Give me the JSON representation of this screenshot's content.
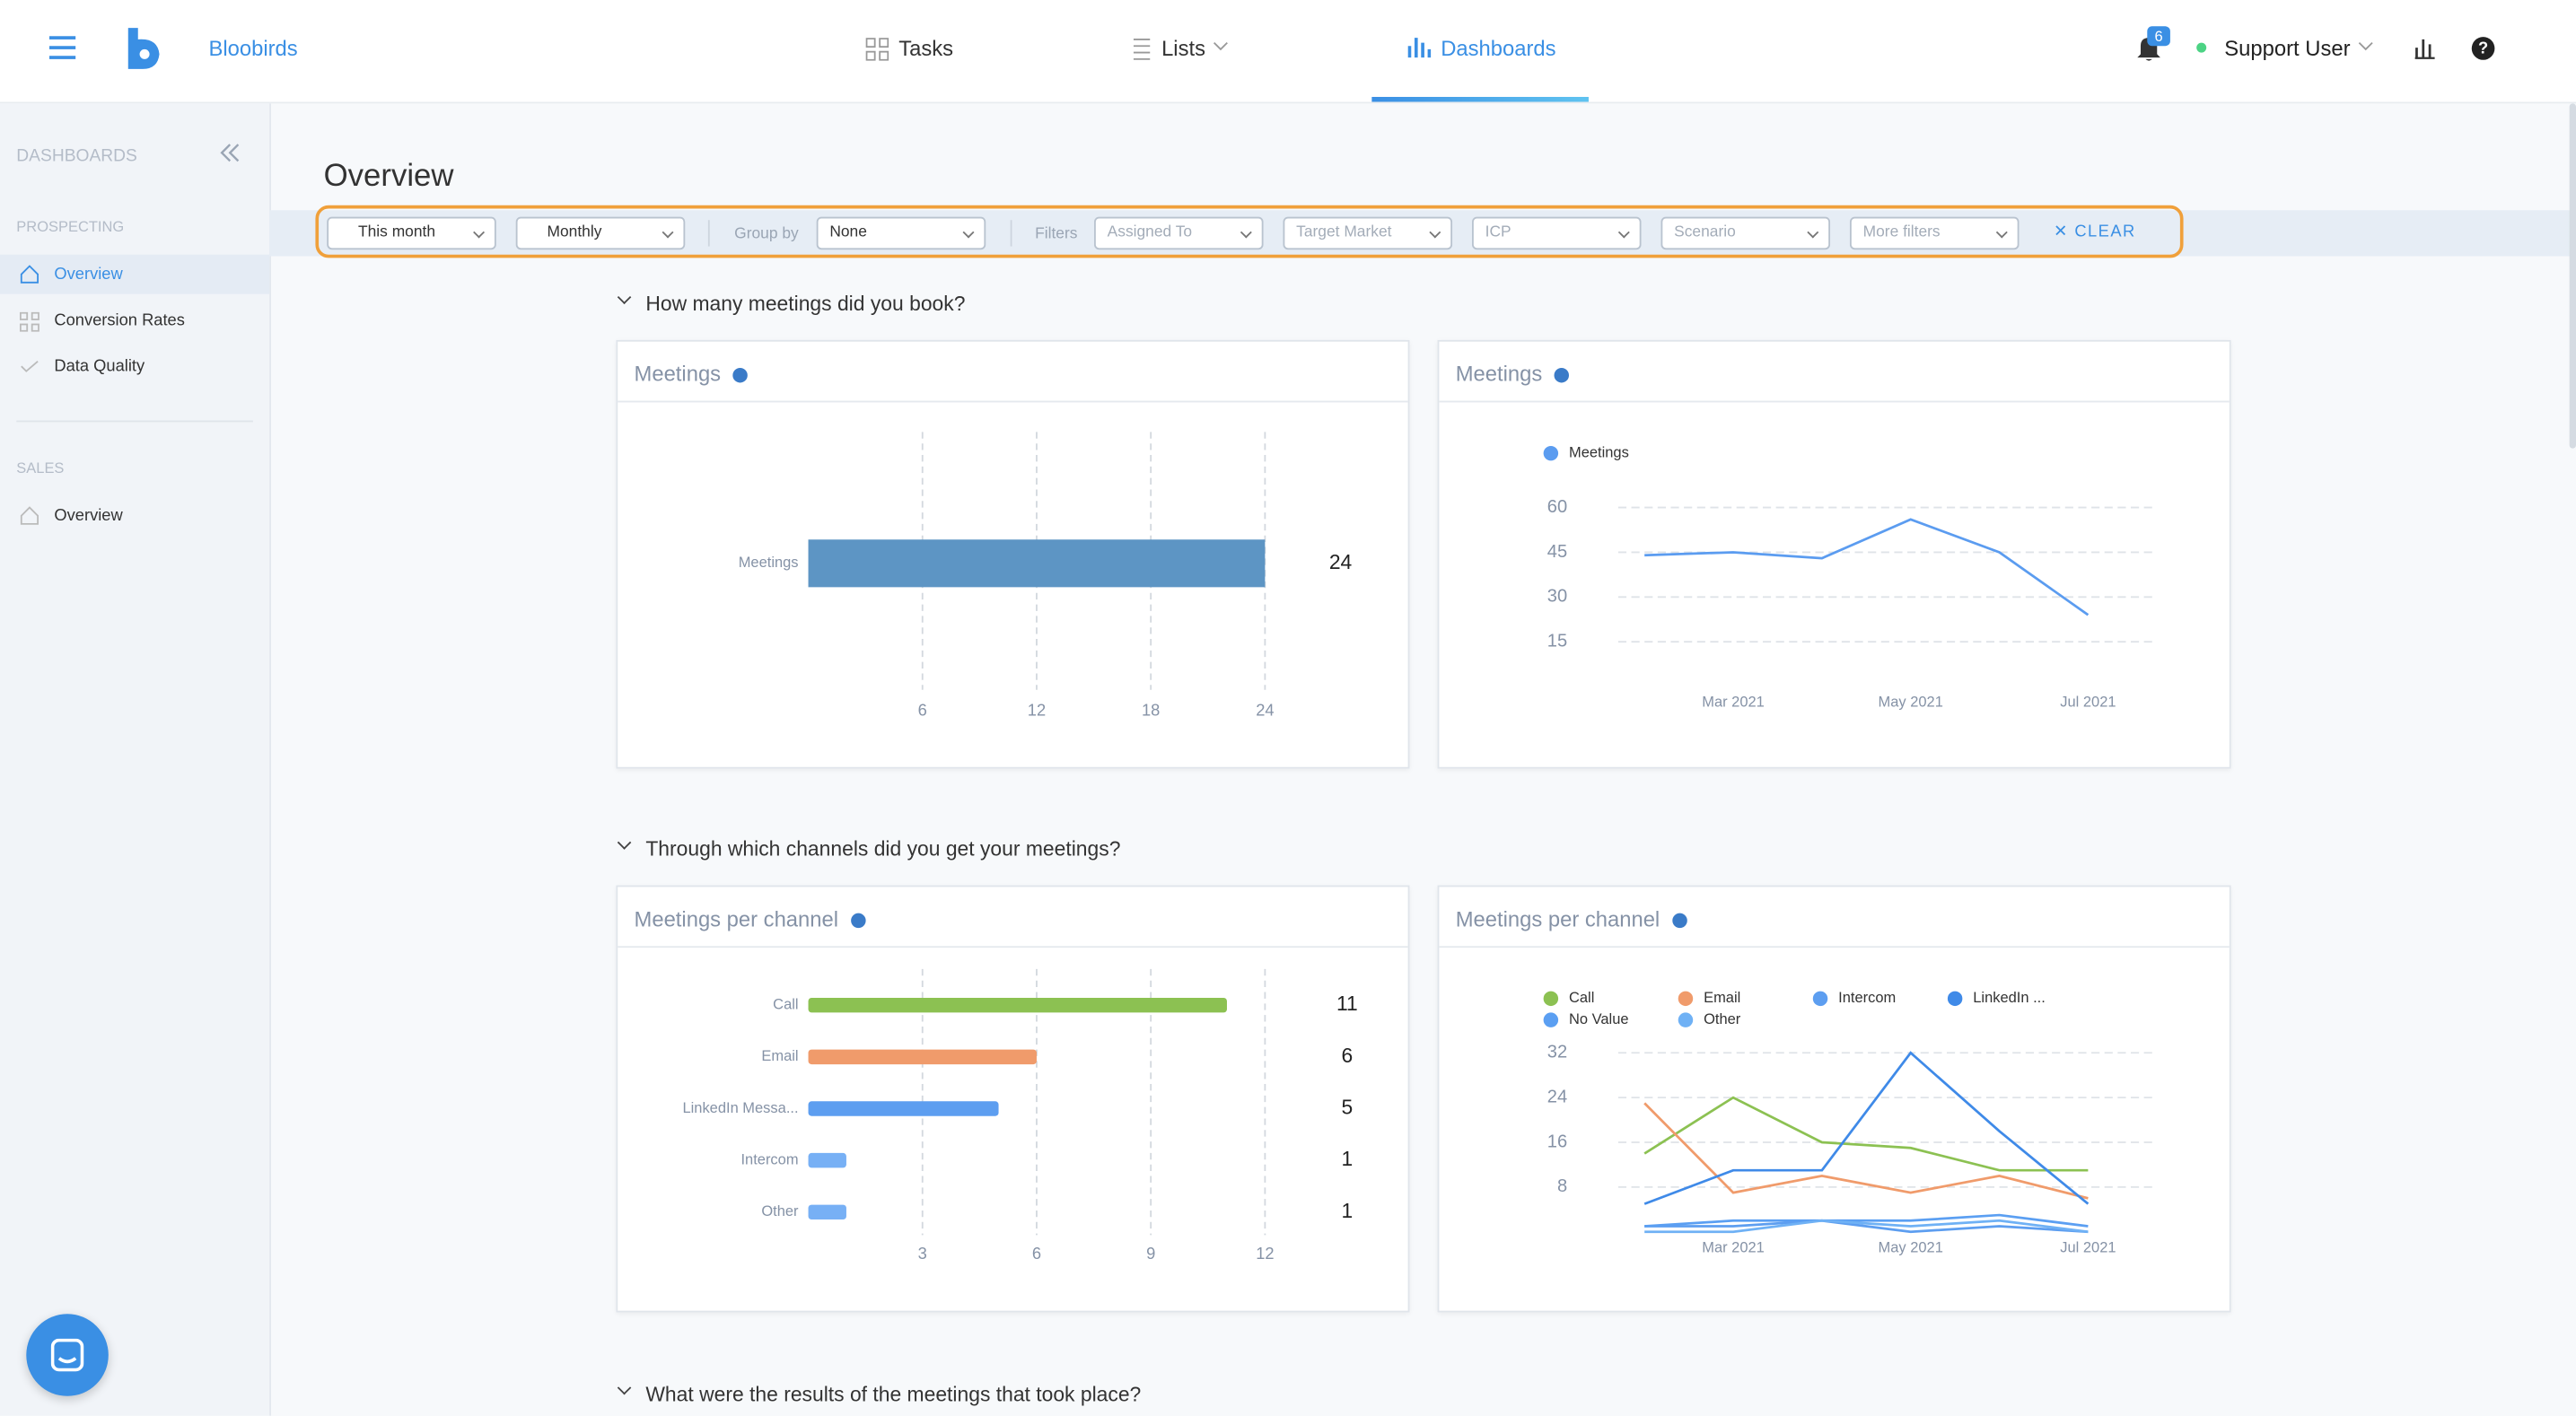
{
  "nav": {
    "brand": "Bloobirds",
    "items": [
      "Tasks",
      "Lists",
      "Dashboards"
    ],
    "notifications": 6,
    "user": "Support User"
  },
  "sidebar": {
    "title": "DASHBOARDS",
    "sections": [
      {
        "label": "PROSPECTING",
        "items": [
          "Overview",
          "Conversion Rates",
          "Data Quality"
        ]
      },
      {
        "label": "SALES",
        "items": [
          "Overview"
        ]
      }
    ]
  },
  "page_title": "Overview",
  "filters": {
    "date": "This month",
    "period": "Monthly",
    "group_by_label": "Group by",
    "group_by": "None",
    "filters_label": "Filters",
    "options": [
      "Assigned To",
      "Target Market",
      "ICP",
      "Scenario",
      "More filters"
    ],
    "clear": "CLEAR"
  },
  "sections": [
    "How many meetings did you book?",
    "Through which channels did you get your meetings?",
    "What were the results of the meetings that took place?"
  ],
  "chart_data": [
    {
      "type": "bar",
      "orientation": "horizontal",
      "title": "Meetings",
      "categories": [
        "Meetings"
      ],
      "values": [
        24
      ],
      "colors": [
        "#5d95c4"
      ],
      "xlim": [
        0,
        24
      ],
      "xticks": [
        6,
        12,
        18,
        24
      ],
      "grid": true
    },
    {
      "type": "line",
      "title": "Meetings",
      "categories": [
        null,
        "Mar 2021",
        null,
        "May 2021",
        null,
        "Jul 2021"
      ],
      "series": [
        {
          "name": "Meetings",
          "color": "#5b9cf0",
          "values": [
            44,
            45,
            43,
            56,
            45,
            24
          ]
        }
      ],
      "ylim": [
        0,
        60
      ],
      "yticks": [
        15,
        30,
        45,
        60
      ],
      "grid": true
    },
    {
      "type": "bar",
      "orientation": "horizontal",
      "title": "Meetings per channel",
      "categories": [
        "Call",
        "Email",
        "LinkedIn Messa...",
        "Intercom",
        "Other"
      ],
      "values": [
        11,
        6,
        5,
        1,
        1
      ],
      "colors": [
        "#8cc152",
        "#f09b6b",
        "#5d9ef0",
        "#77b0f5",
        "#77b0f5"
      ],
      "xlim": [
        0,
        12
      ],
      "xticks": [
        3,
        6,
        9,
        12
      ],
      "grid": true
    },
    {
      "type": "line",
      "title": "Meetings per channel",
      "categories": [
        null,
        "Mar 2021",
        null,
        "May 2021",
        null,
        "Jul 2021"
      ],
      "series": [
        {
          "name": "Call",
          "color": "#8cc152",
          "values": [
            14,
            24,
            16,
            15,
            11,
            11
          ]
        },
        {
          "name": "Email",
          "color": "#f09b6b",
          "values": [
            23,
            7,
            10,
            7,
            10,
            6
          ]
        },
        {
          "name": "Intercom",
          "color": "#5d9ef0",
          "values": [
            1,
            1,
            2,
            0,
            1,
            0
          ]
        },
        {
          "name": "LinkedIn ...",
          "color": "#3f8ae8",
          "values": [
            5,
            11,
            11,
            32,
            18,
            5
          ]
        },
        {
          "name": "No Value",
          "color": "#5b9ff2",
          "values": [
            1,
            2,
            2,
            2,
            3,
            1
          ]
        },
        {
          "name": "Other",
          "color": "#6fb1f5",
          "values": [
            0,
            0,
            2,
            1,
            2,
            0
          ]
        }
      ],
      "ylim": [
        0,
        32
      ],
      "yticks": [
        8,
        16,
        24,
        32
      ],
      "grid": true
    }
  ]
}
